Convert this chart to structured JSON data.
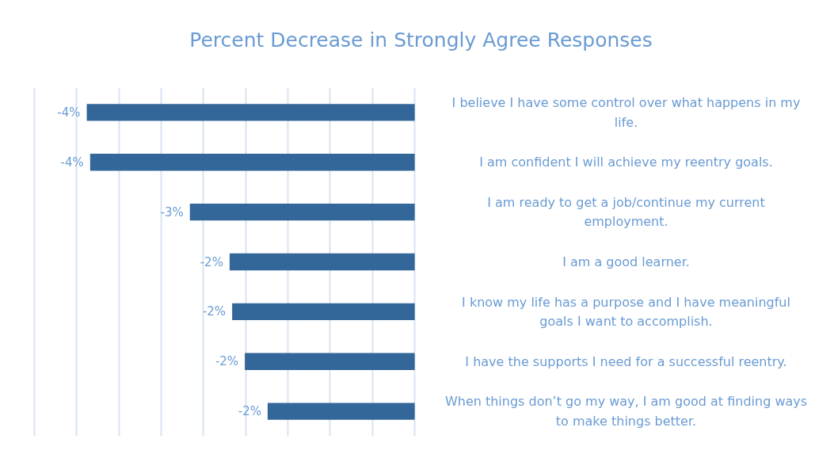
{
  "chart_data": {
    "type": "bar",
    "orientation": "horizontal",
    "title": "Percent Decrease in Strongly Agree Responses",
    "categories": [
      "I believe I have some control over what happens in my life.",
      "I am confident I will achieve my reentry goals.",
      "I am ready to get a job/continue my current employment.",
      "I am a good learner.",
      "I know my life has a purpose and I have meaningful goals I want to accomplish.",
      "I have the supports I need for a successful reentry.",
      "When things don’t go my way, I am good at finding ways to make things better."
    ],
    "values": [
      -3.88,
      -3.84,
      -2.66,
      -2.19,
      -2.16,
      -2.01,
      -1.74
    ],
    "value_labels": [
      "-4%",
      "-4%",
      "-3%",
      "-2%",
      "-2%",
      "-2%",
      "-2%"
    ],
    "color": "#336699",
    "xticks": [
      {
        "value": -4.5,
        "label": null
      },
      {
        "value": -4,
        "label": null
      },
      {
        "value": -3.5,
        "label": null
      },
      {
        "value": -3,
        "label": null
      },
      {
        "value": -2.5,
        "label": null
      },
      {
        "value": -2,
        "label": null
      },
      {
        "value": -1.5,
        "label": null
      },
      {
        "value": -1,
        "label": null
      },
      {
        "value": -0.5,
        "label": null
      },
      {
        "value": 0,
        "label": null
      }
    ],
    "grid": "x",
    "tick_labels": false
  }
}
